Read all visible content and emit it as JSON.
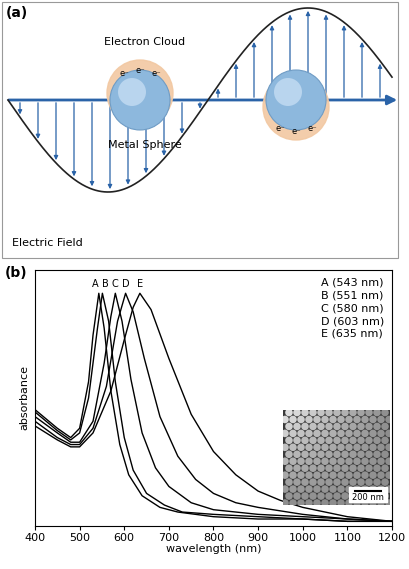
{
  "diagram": {
    "label": "(a)",
    "electron_cloud": "Electron Cloud",
    "metal_sphere": "Metal Sphere",
    "electric_field": "Electric Field",
    "electron": "e⁻"
  },
  "chart_data": {
    "label": "(b)",
    "type": "line",
    "x_label": "wavelength (nm)",
    "y_label": "absorbance",
    "xlim": [
      400,
      1200
    ],
    "xticks": [
      400,
      500,
      600,
      700,
      800,
      900,
      1000,
      1100,
      1200
    ],
    "ylim": [
      0,
      1.1
    ],
    "tick_labels": "x",
    "legend": "upper right",
    "series": [
      {
        "name": "A (543 nm)",
        "peak_label": "A",
        "color": "#000000",
        "x": [
          400,
          450,
          480,
          500,
          520,
          530,
          543,
          555,
          570,
          590,
          610,
          640,
          680,
          720,
          800,
          900,
          1000,
          1100,
          1200
        ],
        "values": [
          0.5,
          0.42,
          0.38,
          0.42,
          0.62,
          0.82,
          1.0,
          0.85,
          0.58,
          0.35,
          0.22,
          0.13,
          0.08,
          0.06,
          0.04,
          0.03,
          0.03,
          0.02,
          0.02
        ]
      },
      {
        "name": "B (551 nm)",
        "peak_label": "B",
        "color": "#000000",
        "x": [
          400,
          450,
          480,
          500,
          520,
          540,
          551,
          565,
          580,
          600,
          620,
          650,
          690,
          730,
          800,
          900,
          1000,
          1100,
          1200
        ],
        "values": [
          0.49,
          0.41,
          0.37,
          0.4,
          0.55,
          0.85,
          1.0,
          0.88,
          0.62,
          0.38,
          0.24,
          0.14,
          0.09,
          0.06,
          0.05,
          0.04,
          0.03,
          0.02,
          0.02
        ]
      },
      {
        "name": "C (580 nm)",
        "peak_label": "C",
        "color": "#000000",
        "x": [
          400,
          450,
          480,
          500,
          530,
          555,
          570,
          580,
          595,
          615,
          640,
          670,
          700,
          750,
          800,
          900,
          1000,
          1100,
          1200
        ],
        "values": [
          0.47,
          0.4,
          0.36,
          0.36,
          0.45,
          0.7,
          0.9,
          1.0,
          0.88,
          0.63,
          0.4,
          0.25,
          0.17,
          0.1,
          0.07,
          0.05,
          0.04,
          0.03,
          0.02
        ]
      },
      {
        "name": "D (603 nm)",
        "peak_label": "D",
        "color": "#000000",
        "x": [
          400,
          450,
          480,
          500,
          530,
          560,
          585,
          603,
          620,
          645,
          680,
          720,
          760,
          800,
          850,
          900,
          1000,
          1100,
          1200
        ],
        "values": [
          0.45,
          0.38,
          0.35,
          0.35,
          0.42,
          0.6,
          0.88,
          1.0,
          0.92,
          0.72,
          0.47,
          0.3,
          0.2,
          0.14,
          0.1,
          0.08,
          0.05,
          0.03,
          0.02
        ]
      },
      {
        "name": "E (635 nm)",
        "peak_label": "E",
        "color": "#000000",
        "x": [
          400,
          450,
          480,
          500,
          530,
          570,
          600,
          620,
          635,
          660,
          700,
          750,
          800,
          850,
          900,
          950,
          1000,
          1100,
          1200
        ],
        "values": [
          0.43,
          0.37,
          0.34,
          0.34,
          0.4,
          0.58,
          0.8,
          0.94,
          1.0,
          0.93,
          0.72,
          0.48,
          0.32,
          0.22,
          0.15,
          0.11,
          0.08,
          0.04,
          0.02
        ]
      }
    ],
    "inset": {
      "scale_bar": "200 nm"
    }
  }
}
